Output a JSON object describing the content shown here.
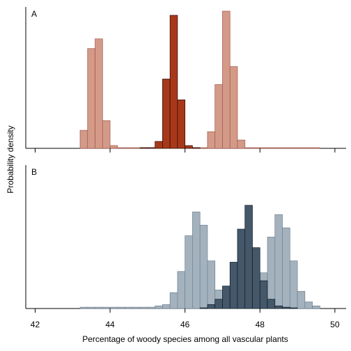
{
  "chart_data": {
    "type": "histogram",
    "xlabel": "Percentage of woody species among all vascular plants",
    "ylabel": "Probability density",
    "xlim": [
      41.75,
      50.3
    ],
    "xticks": [
      42,
      44,
      46,
      48,
      50
    ],
    "bin_width": 0.2,
    "panels": [
      {
        "label": "A",
        "ymax": 1.0,
        "series": [
          {
            "color": "#d49a88",
            "edge": "#a0554a",
            "bins": [
              [
                43.2,
                0.13
              ],
              [
                43.4,
                0.72
              ],
              [
                43.6,
                0.79
              ],
              [
                43.8,
                0.2
              ],
              [
                44.0,
                0.02
              ],
              [
                44.2,
                0.005
              ],
              [
                44.4,
                0.005
              ],
              [
                44.6,
                0.005
              ],
              [
                44.8,
                0.005
              ],
              [
                45.0,
                0.005
              ],
              [
                45.2,
                0.005
              ],
              [
                45.4,
                0.005
              ],
              [
                45.6,
                0.005
              ],
              [
                45.8,
                0.005
              ],
              [
                46.0,
                0.005
              ],
              [
                46.2,
                0.005
              ],
              [
                46.4,
                0.005
              ],
              [
                46.6,
                0.12
              ],
              [
                46.8,
                0.46
              ],
              [
                47.0,
                0.99
              ],
              [
                47.2,
                0.59
              ],
              [
                47.4,
                0.06
              ],
              [
                47.6,
                0.005
              ],
              [
                47.8,
                0.005
              ],
              [
                48.0,
                0.005
              ],
              [
                48.2,
                0.005
              ],
              [
                48.4,
                0.005
              ],
              [
                48.6,
                0.005
              ],
              [
                48.8,
                0.005
              ],
              [
                49.0,
                0.005
              ],
              [
                49.2,
                0.005
              ],
              [
                49.4,
                0.005
              ]
            ]
          },
          {
            "color": "#a8381a",
            "edge": "#2a0a04",
            "bins": [
              [
                44.8,
                0.005
              ],
              [
                45.0,
                0.005
              ],
              [
                45.2,
                0.05
              ],
              [
                45.4,
                0.5
              ],
              [
                45.6,
                0.96
              ],
              [
                45.8,
                0.35
              ],
              [
                46.0,
                0.02
              ],
              [
                46.2,
                0.005
              ]
            ]
          }
        ]
      },
      {
        "label": "B",
        "ymax": 1.0,
        "series": [
          {
            "color": "#a4b2be",
            "edge": "#6f8090",
            "bins": [
              [
                43.2,
                0.01
              ],
              [
                43.4,
                0.01
              ],
              [
                43.6,
                0.01
              ],
              [
                43.8,
                0.01
              ],
              [
                44.0,
                0.01
              ],
              [
                44.2,
                0.01
              ],
              [
                44.4,
                0.01
              ],
              [
                44.6,
                0.01
              ],
              [
                44.8,
                0.01
              ],
              [
                45.0,
                0.01
              ],
              [
                45.2,
                0.02
              ],
              [
                45.4,
                0.03
              ],
              [
                45.6,
                0.12
              ],
              [
                45.8,
                0.28
              ],
              [
                46.0,
                0.55
              ],
              [
                46.2,
                0.73
              ],
              [
                46.4,
                0.63
              ],
              [
                46.6,
                0.36
              ],
              [
                46.8,
                0.14
              ],
              [
                47.0,
                0.05
              ],
              [
                47.2,
                0.02
              ],
              [
                47.4,
                0.02
              ],
              [
                47.6,
                0.02
              ],
              [
                47.8,
                0.05
              ],
              [
                48.0,
                0.27
              ],
              [
                48.2,
                0.54
              ],
              [
                48.4,
                0.71
              ],
              [
                48.6,
                0.61
              ],
              [
                48.8,
                0.36
              ],
              [
                49.0,
                0.13
              ],
              [
                49.2,
                0.05
              ],
              [
                49.4,
                0.02
              ]
            ]
          },
          {
            "color": "#44586a",
            "edge": "#0e1a24",
            "bins": [
              [
                46.4,
                0.005
              ],
              [
                46.6,
                0.03
              ],
              [
                46.8,
                0.07
              ],
              [
                47.0,
                0.17
              ],
              [
                47.2,
                0.35
              ],
              [
                47.4,
                0.6
              ],
              [
                47.6,
                0.78
              ],
              [
                47.8,
                0.46
              ],
              [
                48.0,
                0.21
              ],
              [
                48.2,
                0.07
              ],
              [
                48.4,
                0.02
              ],
              [
                48.6,
                0.01
              ],
              [
                48.8,
                0.005
              ]
            ]
          }
        ]
      }
    ]
  }
}
